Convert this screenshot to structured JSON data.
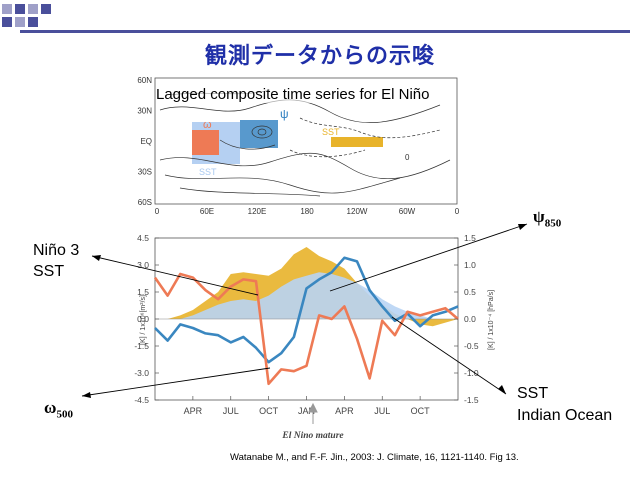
{
  "slide": {
    "title": "観測データからの示唆",
    "deco_colors": [
      "#9fa0c8",
      "#4a4f9b"
    ]
  },
  "map": {
    "title": "Lagged composite time series for El Niño",
    "lat_ticks": [
      "60N",
      "30N",
      "EQ",
      "30S",
      "60S"
    ],
    "lon_ticks": [
      "0",
      "60E",
      "120E",
      "180",
      "120W",
      "60W",
      "0"
    ],
    "labels": {
      "omega": "ω",
      "psi": "ψ",
      "sst_pacific": "SST",
      "sst_io": "SST",
      "zero": "0"
    },
    "colors": {
      "omega_box": "#ee7a55",
      "psi_box": "#2e7fc0",
      "sst_box": "#a8c8f0",
      "sst_pacific": "#e8b32a"
    }
  },
  "chart_data": {
    "type": "line",
    "x_ticks": [
      "APR",
      "JUL",
      "OCT",
      "JAN",
      "APR",
      "JUL",
      "OCT"
    ],
    "x_range": [
      0,
      24
    ],
    "x_tick_pos": [
      3,
      6,
      9,
      12,
      15,
      18,
      21
    ],
    "left_axis": {
      "label": "[K] / 1x10⁶[m²/s]",
      "ticks": [
        "4.5",
        "3.0",
        "1.5",
        "0.0",
        "-1.5",
        "-3.0",
        "-4.5"
      ],
      "range": [
        -4.5,
        4.5
      ]
    },
    "right_axis": {
      "label": "[K] / 1x10⁻⁴ [hPa/s]",
      "ticks": [
        "1.5",
        "1.0",
        "0.5",
        "0.0",
        "-0.5",
        "-1.0",
        "-1.5"
      ],
      "range": [
        -1.5,
        1.5
      ]
    },
    "x": [
      0,
      1,
      2,
      3,
      4,
      5,
      6,
      7,
      8,
      9,
      10,
      11,
      12,
      13,
      14,
      15,
      16,
      17,
      18,
      19,
      20,
      21,
      22,
      23,
      24
    ],
    "series": [
      {
        "name": "Niño 3 SST",
        "kind": "area",
        "color": "#e8b32a",
        "values": [
          0.0,
          0.0,
          0.2,
          0.5,
          1.0,
          1.5,
          2.5,
          2.6,
          2.5,
          2.4,
          2.8,
          3.6,
          4.0,
          3.5,
          3.2,
          2.8,
          2.0,
          1.3,
          0.8,
          0.3,
          0.0,
          -0.3,
          -0.4,
          -0.2,
          0.0
        ]
      },
      {
        "name": "SST Indian Ocean",
        "kind": "area",
        "color": "#b8d4f4",
        "values": [
          0.0,
          0.0,
          0.0,
          0.2,
          0.5,
          0.8,
          1.0,
          1.1,
          1.0,
          1.3,
          1.8,
          2.2,
          2.4,
          2.6,
          2.5,
          2.3,
          2.0,
          1.6,
          1.1,
          0.7,
          0.4,
          0.2,
          0.0,
          0.0,
          0.0
        ]
      },
      {
        "name": "ψ850",
        "kind": "line",
        "color": "#3a87c0",
        "values": [
          -0.5,
          -1.2,
          -0.3,
          -0.5,
          -0.8,
          -0.9,
          -1.3,
          -1.0,
          -1.6,
          -2.4,
          -1.9,
          -1.0,
          1.7,
          2.2,
          2.6,
          3.4,
          3.2,
          1.6,
          0.7,
          -0.1,
          0.3,
          -0.4,
          0.2,
          0.4,
          0.7
        ]
      },
      {
        "name": "ω500",
        "kind": "line",
        "color": "#ee7a55",
        "values": [
          2.3,
          1.3,
          2.5,
          2.3,
          1.6,
          1.1,
          1.8,
          2.2,
          2.1,
          -3.6,
          -2.8,
          -2.9,
          -2.6,
          0.2,
          0.0,
          0.7,
          -1.1,
          -3.3,
          -0.1,
          -0.9,
          0.4,
          0.2,
          0.4,
          0.6,
          0.0
        ]
      }
    ],
    "annotations": {
      "nino3": [
        "Niño 3",
        "SST"
      ],
      "omega": "ω",
      "omega_sub": "500",
      "psi": "ψ",
      "psi_sub": "850",
      "sst_io": [
        "SST",
        "Indian Ocean"
      ],
      "el_nino_mature": "El Nino mature"
    }
  },
  "citation": "Watanabe M., and F.-F. Jin., 2003:  J. Climate, 16, 1121-1140. Fig 13."
}
